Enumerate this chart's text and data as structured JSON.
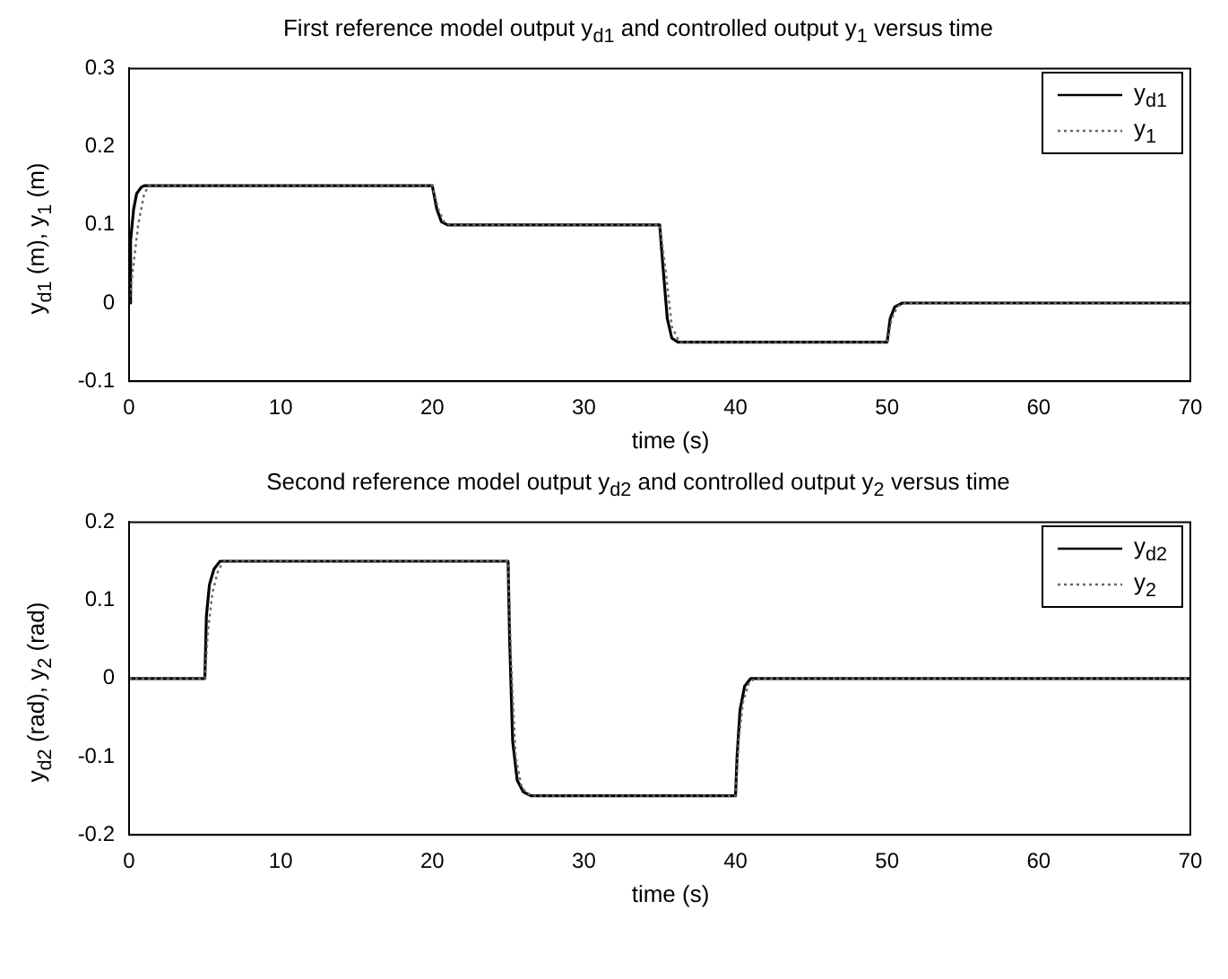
{
  "chart_data": [
    {
      "type": "line",
      "title": "First reference model output y$_{d1}$ and controlled output y$_{1}$ versus time",
      "xlabel": "time (s)",
      "ylabel": "y$_{d1}$ (m), y$_{1}$ (m)",
      "xlim": [
        0,
        70
      ],
      "xticks": [
        0,
        10,
        20,
        30,
        40,
        50,
        60,
        70
      ],
      "ylim": [
        -0.1,
        0.3
      ],
      "yticks": [
        -0.1,
        0,
        0.1,
        0.2,
        0.3
      ],
      "grid": false,
      "legend": "top right",
      "marker": "none",
      "series": [
        {
          "name": "y$_{d1}$",
          "color": "#000000",
          "line_style": "solid",
          "x": [
            0,
            0.1,
            0.3,
            0.5,
            0.8,
            1,
            20,
            20.3,
            20.6,
            21,
            35,
            35.2,
            35.5,
            35.8,
            36.2,
            50,
            50.2,
            50.5,
            51,
            70
          ],
          "values": [
            0,
            0.08,
            0.12,
            0.14,
            0.148,
            0.15,
            0.15,
            0.12,
            0.104,
            0.1,
            0.1,
            0.05,
            -0.02,
            -0.045,
            -0.05,
            -0.05,
            -0.02,
            -0.005,
            0,
            0
          ]
        },
        {
          "name": "y$_{1}$",
          "color": "#666666",
          "line_style": "dotted",
          "x": [
            0,
            0.3,
            0.6,
            1,
            1.3,
            20,
            20.4,
            20.8,
            21.2,
            35,
            35.4,
            35.8,
            36.3,
            50,
            50.3,
            50.7,
            51.2,
            70
          ],
          "values": [
            0,
            0.05,
            0.1,
            0.14,
            0.15,
            0.15,
            0.12,
            0.103,
            0.1,
            0.1,
            0.04,
            -0.03,
            -0.05,
            -0.05,
            -0.02,
            -0.004,
            0,
            0
          ]
        }
      ]
    },
    {
      "type": "line",
      "title": "Second reference model output y$_{d2}$ and controlled output y$_{2}$ versus time",
      "xlabel": "time (s)",
      "ylabel": "y$_{d2}$ (rad), y$_{2}$ (rad)",
      "xlim": [
        0,
        70
      ],
      "xticks": [
        0,
        10,
        20,
        30,
        40,
        50,
        60,
        70
      ],
      "ylim": [
        -0.2,
        0.2
      ],
      "yticks": [
        -0.2,
        -0.1,
        0,
        0.1,
        0.2
      ],
      "grid": false,
      "legend": "top right",
      "marker": "none",
      "series": [
        {
          "name": "y$_{d2}$",
          "color": "#000000",
          "line_style": "solid",
          "x": [
            0,
            5,
            5.1,
            5.3,
            5.6,
            6,
            25,
            25.1,
            25.3,
            25.6,
            26,
            26.5,
            40,
            40.1,
            40.3,
            40.6,
            41,
            70
          ],
          "values": [
            0,
            0,
            0.08,
            0.12,
            0.14,
            0.15,
            0.15,
            0.05,
            -0.08,
            -0.13,
            -0.145,
            -0.15,
            -0.15,
            -0.1,
            -0.04,
            -0.01,
            0,
            0
          ]
        },
        {
          "name": "y$_{2}$",
          "color": "#666666",
          "line_style": "dotted",
          "x": [
            0,
            5,
            5.2,
            5.5,
            5.9,
            6.3,
            25,
            25.2,
            25.5,
            25.9,
            26.5,
            40,
            40.2,
            40.5,
            40.9,
            41.3,
            70
          ],
          "values": [
            0,
            0,
            0.06,
            0.11,
            0.14,
            0.15,
            0.15,
            0.02,
            -0.1,
            -0.14,
            -0.15,
            -0.15,
            -0.08,
            -0.03,
            -0.005,
            0,
            0
          ]
        }
      ]
    }
  ]
}
